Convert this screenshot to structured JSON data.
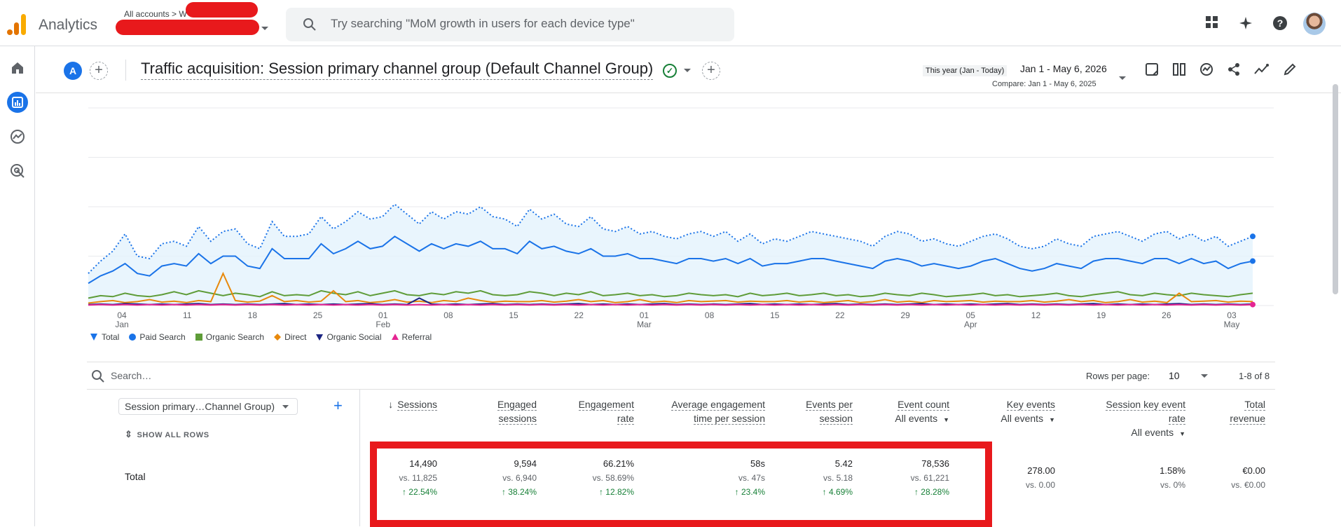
{
  "app": {
    "title": "Analytics",
    "breadcrumb": "All accounts > W"
  },
  "search": {
    "placeholder": "Try searching \"MoM growth in users for each device type\""
  },
  "report": {
    "title": "Traffic acquisition: Session primary channel group (Default Channel Group)",
    "date_label": "This year (Jan - Today)",
    "date_range": "Jan 1 - May 6, 2026",
    "compare": "Compare: Jan 1 - May 6, 2025",
    "avatar_letter": "A"
  },
  "chart_data": {
    "type": "line",
    "x_ticks": [
      {
        "day": "04",
        "month": "Jan"
      },
      {
        "day": "11",
        "month": ""
      },
      {
        "day": "18",
        "month": ""
      },
      {
        "day": "25",
        "month": ""
      },
      {
        "day": "01",
        "month": "Feb"
      },
      {
        "day": "08",
        "month": ""
      },
      {
        "day": "15",
        "month": ""
      },
      {
        "day": "22",
        "month": ""
      },
      {
        "day": "01",
        "month": "Mar"
      },
      {
        "day": "08",
        "month": ""
      },
      {
        "day": "15",
        "month": ""
      },
      {
        "day": "22",
        "month": ""
      },
      {
        "day": "29",
        "month": ""
      },
      {
        "day": "05",
        "month": "Apr"
      },
      {
        "day": "12",
        "month": ""
      },
      {
        "day": "19",
        "month": ""
      },
      {
        "day": "26",
        "month": ""
      },
      {
        "day": "03",
        "month": "May"
      }
    ],
    "y_ticks": [
      "0",
      "100",
      "200",
      "300",
      "400"
    ],
    "ylim": [
      0,
      400
    ],
    "series": [
      {
        "name": "Total",
        "color": "#1a73e8",
        "style": "dotted",
        "values": [
          65,
          90,
          110,
          145,
          100,
          95,
          125,
          130,
          120,
          160,
          130,
          150,
          155,
          125,
          115,
          170,
          140,
          140,
          145,
          180,
          155,
          170,
          190,
          175,
          180,
          205,
          185,
          165,
          190,
          175,
          190,
          185,
          200,
          180,
          175,
          160,
          195,
          175,
          185,
          165,
          160,
          180,
          155,
          150,
          160,
          145,
          150,
          140,
          135,
          145,
          150,
          140,
          150,
          130,
          145,
          125,
          135,
          130,
          140,
          150,
          145,
          140,
          135,
          130,
          120,
          140,
          150,
          145,
          130,
          135,
          125,
          120,
          130,
          140,
          145,
          135,
          120,
          115,
          120,
          135,
          125,
          120,
          140,
          145,
          150,
          140,
          130,
          145,
          150,
          135,
          145,
          130,
          140,
          120,
          130,
          140
        ]
      },
      {
        "name": "Paid Search",
        "color": "#1a73e8",
        "style": "solid",
        "values": [
          45,
          60,
          70,
          85,
          65,
          60,
          80,
          85,
          80,
          105,
          85,
          100,
          100,
          80,
          75,
          115,
          95,
          95,
          95,
          125,
          105,
          115,
          130,
          115,
          120,
          140,
          125,
          110,
          125,
          115,
          125,
          120,
          130,
          115,
          115,
          105,
          130,
          115,
          120,
          110,
          105,
          115,
          100,
          100,
          105,
          95,
          95,
          90,
          85,
          95,
          95,
          90,
          95,
          85,
          95,
          80,
          85,
          85,
          90,
          95,
          95,
          90,
          85,
          80,
          75,
          90,
          95,
          90,
          80,
          85,
          80,
          75,
          80,
          90,
          95,
          85,
          75,
          70,
          75,
          85,
          80,
          75,
          90,
          95,
          95,
          90,
          85,
          95,
          95,
          85,
          95,
          85,
          90,
          75,
          85,
          90
        ]
      },
      {
        "name": "Organic Search",
        "color": "#5e9c38",
        "style": "solid",
        "values": [
          15,
          20,
          18,
          25,
          20,
          18,
          22,
          28,
          22,
          30,
          25,
          20,
          25,
          22,
          18,
          28,
          20,
          22,
          20,
          30,
          25,
          22,
          28,
          20,
          25,
          30,
          22,
          20,
          25,
          22,
          28,
          25,
          30,
          22,
          20,
          22,
          28,
          25,
          20,
          25,
          22,
          28,
          20,
          22,
          25,
          20,
          22,
          18,
          20,
          25,
          22,
          20,
          22,
          18,
          25,
          20,
          22,
          25,
          20,
          22,
          25,
          20,
          22,
          18,
          20,
          25,
          22,
          20,
          25,
          22,
          18,
          20,
          22,
          25,
          20,
          22,
          18,
          20,
          22,
          25,
          20,
          18,
          22,
          25,
          28,
          22,
          20,
          25,
          22,
          20,
          25,
          22,
          20,
          18,
          22,
          25
        ]
      },
      {
        "name": "Direct",
        "color": "#e8890c",
        "style": "solid",
        "values": [
          5,
          8,
          10,
          6,
          8,
          12,
          7,
          9,
          6,
          10,
          8,
          65,
          10,
          7,
          9,
          20,
          8,
          10,
          7,
          9,
          30,
          8,
          10,
          6,
          8,
          12,
          7,
          9,
          6,
          10,
          8,
          15,
          10,
          7,
          9,
          8,
          8,
          10,
          7,
          9,
          12,
          8,
          10,
          6,
          8,
          12,
          7,
          9,
          6,
          10,
          8,
          9,
          10,
          7,
          9,
          8,
          8,
          10,
          7,
          9,
          6,
          8,
          10,
          6,
          8,
          12,
          7,
          9,
          6,
          10,
          8,
          9,
          10,
          7,
          9,
          8,
          8,
          10,
          7,
          9,
          12,
          8,
          10,
          6,
          8,
          12,
          7,
          9,
          6,
          25,
          8,
          9,
          10,
          7,
          9,
          8
        ]
      },
      {
        "name": "Organic Social",
        "color": "#1c2582",
        "style": "solid",
        "values": [
          2,
          3,
          2,
          4,
          3,
          2,
          3,
          2,
          3,
          4,
          2,
          3,
          2,
          3,
          2,
          3,
          4,
          2,
          3,
          2,
          3,
          2,
          3,
          4,
          2,
          3,
          2,
          15,
          3,
          2,
          3,
          2,
          3,
          4,
          2,
          3,
          2,
          3,
          2,
          3,
          4,
          2,
          3,
          2,
          3,
          2,
          3,
          4,
          2,
          3,
          2,
          3,
          2,
          3,
          4,
          2,
          3,
          2,
          3,
          2,
          3,
          4,
          2,
          3,
          2,
          3,
          2,
          3,
          4,
          2,
          3,
          2,
          3,
          2,
          3,
          4,
          2,
          3,
          2,
          3,
          2,
          3,
          4,
          2,
          3,
          2,
          3,
          2,
          3,
          4,
          2,
          3,
          2,
          3,
          2,
          3
        ]
      },
      {
        "name": "Referral",
        "color": "#e52592",
        "style": "solid",
        "values": [
          1,
          2,
          1,
          2,
          1,
          2,
          1,
          2,
          1,
          2,
          1,
          2,
          1,
          2,
          1,
          2,
          1,
          2,
          1,
          2,
          1,
          2,
          1,
          2,
          1,
          2,
          1,
          2,
          1,
          2,
          1,
          2,
          1,
          2,
          1,
          2,
          1,
          2,
          1,
          2,
          1,
          2,
          1,
          2,
          1,
          2,
          1,
          2,
          1,
          2,
          1,
          2,
          1,
          2,
          1,
          2,
          1,
          2,
          1,
          2,
          1,
          2,
          1,
          2,
          1,
          2,
          1,
          2,
          1,
          2,
          1,
          2,
          1,
          2,
          1,
          2,
          1,
          2,
          1,
          2,
          1,
          2,
          1,
          2,
          1,
          2,
          1,
          2,
          1,
          2,
          1,
          2,
          1,
          2,
          1,
          2
        ]
      }
    ]
  },
  "table": {
    "search_placeholder": "Search…",
    "rows_per_page_label": "Rows per page:",
    "rows_per_page": "10",
    "pager": "1-8 of 8",
    "dimension": "Session primary…Channel Group)",
    "show_all": "SHOW ALL ROWS",
    "total_label": "Total",
    "columns": [
      {
        "h1": "Sessions",
        "h2": "",
        "sub": "",
        "value": "14,490",
        "vs": "vs. 11,825",
        "change": "↑ 22.54%"
      },
      {
        "h1": "Engaged",
        "h2": "sessions",
        "sub": "",
        "value": "9,594",
        "vs": "vs. 6,940",
        "change": "↑ 38.24%"
      },
      {
        "h1": "Engagement",
        "h2": "rate",
        "sub": "",
        "value": "66.21%",
        "vs": "vs. 58.69%",
        "change": "↑ 12.82%"
      },
      {
        "h1": "Average engagement",
        "h2": "time per session",
        "sub": "",
        "value": "58s",
        "vs": "vs. 47s",
        "change": "↑ 23.4%"
      },
      {
        "h1": "Events per",
        "h2": "session",
        "sub": "",
        "value": "5.42",
        "vs": "vs. 5.18",
        "change": "↑ 4.69%"
      },
      {
        "h1": "Event count",
        "h2": "",
        "sub": "All events",
        "value": "78,536",
        "vs": "vs. 61,221",
        "change": "↑ 28.28%"
      },
      {
        "h1": "Key events",
        "h2": "",
        "sub": "All events",
        "value": "278.00",
        "vs": "vs. 0.00",
        "change": ""
      },
      {
        "h1": "Session key event",
        "h2": "rate",
        "sub": "All events",
        "value": "1.58%",
        "vs": "vs. 0%",
        "change": ""
      },
      {
        "h1": "Total",
        "h2": "revenue",
        "sub": "",
        "value": "€0.00",
        "vs": "vs. €0.00",
        "change": ""
      }
    ]
  }
}
